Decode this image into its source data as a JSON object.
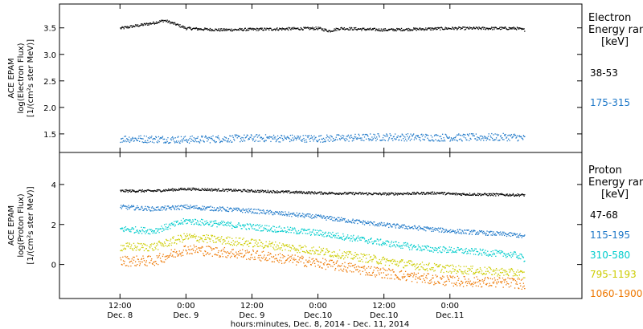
{
  "chart_data": [
    {
      "type": "scatter",
      "panel": "electron",
      "ylabel_lines": [
        "ACE EPAM",
        "log(Electron Flux)",
        "[1/(cm²s ster MeV)]"
      ],
      "ylim": [
        1.15,
        3.95
      ],
      "yticks": [
        1.5,
        2.0,
        2.5,
        3.0,
        3.5
      ],
      "ytick_labels": [
        "1.5",
        "2.0",
        "2.5",
        "3.0",
        "3.5"
      ],
      "legend_title": [
        "Electron",
        "Energy range",
        "[keV]"
      ],
      "series": [
        {
          "name": "38-53",
          "color": "#000000",
          "x": [
            0,
            6,
            8,
            10,
            12,
            18,
            24,
            36,
            38,
            40,
            48,
            60,
            72,
            73.5
          ],
          "y": [
            3.5,
            3.6,
            3.65,
            3.58,
            3.5,
            3.47,
            3.48,
            3.5,
            3.45,
            3.5,
            3.47,
            3.5,
            3.5,
            3.47
          ]
        },
        {
          "name": "175-315",
          "color": "#1e78c8",
          "x": [
            0,
            12,
            24,
            36,
            48,
            60,
            72,
            73.5
          ],
          "y": [
            1.42,
            1.4,
            1.43,
            1.42,
            1.45,
            1.44,
            1.45,
            1.42
          ]
        }
      ]
    },
    {
      "type": "scatter",
      "panel": "proton",
      "ylabel_lines": [
        "ACE EPAM",
        "log(Proton Flux)",
        "[1/(cm²s ster MeV)]"
      ],
      "ylim": [
        -1.7,
        5.6
      ],
      "yticks": [
        0,
        2,
        4
      ],
      "ytick_labels": [
        "0",
        "2",
        "4"
      ],
      "legend_title": [
        "Proton",
        "Energy range",
        "[keV]"
      ],
      "series": [
        {
          "name": "47-68",
          "color": "#000000",
          "x": [
            0,
            6,
            12,
            24,
            36,
            48,
            58,
            60,
            72,
            73.5
          ],
          "y": [
            3.7,
            3.7,
            3.8,
            3.7,
            3.6,
            3.55,
            3.6,
            3.55,
            3.5,
            3.5
          ]
        },
        {
          "name": "115-195",
          "color": "#1e78c8",
          "x": [
            0,
            6,
            12,
            24,
            36,
            48,
            56,
            60,
            72,
            73.5
          ],
          "y": [
            2.9,
            2.8,
            2.9,
            2.7,
            2.4,
            2.0,
            1.8,
            1.7,
            1.5,
            1.4
          ]
        },
        {
          "name": "310-580",
          "color": "#00cccc",
          "x": [
            0,
            6,
            12,
            24,
            36,
            48,
            56,
            60,
            72,
            73.5
          ],
          "y": [
            1.8,
            1.7,
            2.2,
            1.9,
            1.6,
            1.1,
            0.8,
            0.75,
            0.5,
            0.3
          ]
        },
        {
          "name": "795-1193",
          "color": "#cccc00",
          "x": [
            0,
            6,
            12,
            24,
            36,
            48,
            56,
            60,
            72,
            73.5
          ],
          "y": [
            0.9,
            0.9,
            1.4,
            1.1,
            0.7,
            0.2,
            -0.1,
            -0.2,
            -0.4,
            -0.5
          ]
        },
        {
          "name": "1060-1900",
          "color": "#ee7700",
          "x": [
            0,
            6,
            12,
            24,
            36,
            48,
            56,
            60,
            72,
            73.5
          ],
          "y": [
            0.2,
            0.2,
            0.8,
            0.5,
            0.1,
            -0.4,
            -0.7,
            -0.8,
            -0.9,
            -1.0
          ]
        }
      ]
    }
  ],
  "x_axis": {
    "range_hours": [
      -11,
      84
    ],
    "major_ticks": [
      {
        "hours": 0,
        "time": "12:00",
        "date": "Dec. 8"
      },
      {
        "hours": 12,
        "time": "0:00",
        "date": "Dec. 9"
      },
      {
        "hours": 24,
        "time": "12:00",
        "date": "Dec. 9"
      },
      {
        "hours": 36,
        "time": "0:00",
        "date": "Dec.10"
      },
      {
        "hours": 48,
        "time": "12:00",
        "date": "Dec.10"
      },
      {
        "hours": 60,
        "time": "0:00",
        "date": "Dec.11"
      }
    ],
    "xlabel": "hours:minutes, Dec. 8, 2014 - Dec. 11, 2014"
  }
}
